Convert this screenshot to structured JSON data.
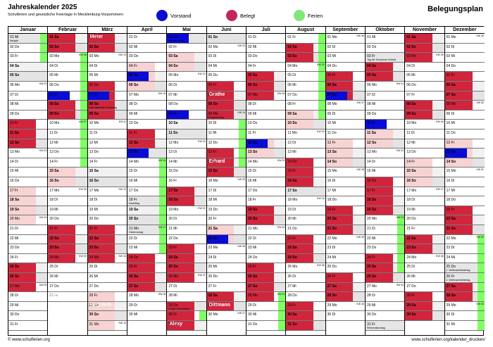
{
  "header": {
    "title": "Jahreskalender 2025",
    "subtitle": "Schulferien und gesetzliche Feiertage in Mecklenburg-Vorpommern",
    "right_title": "Belegungsplan"
  },
  "legend": [
    {
      "label": "Vorstand",
      "color": "#0b0bd6"
    },
    {
      "label": "Belegt",
      "color": "#c2275a"
    },
    {
      "label": "Ferien",
      "color": "#7fe87a"
    }
  ],
  "months": [
    "Januar",
    "Februar",
    "März",
    "April",
    "Mai",
    "Juni",
    "Juli",
    "August",
    "September",
    "Oktober",
    "November",
    "Dezember"
  ],
  "footer": {
    "left": "© www.schulferien.org",
    "right": "www.schulferien.org/kalender_drucken/"
  },
  "names": {
    "meier1": "Meier",
    "meier2": "Meier",
    "grathe": "Grathe",
    "erhard": "Erhard",
    "regverb": "Reg.Verb.",
    "dittmann": "Dittmann",
    "alexy": "Alexy"
  }
}
